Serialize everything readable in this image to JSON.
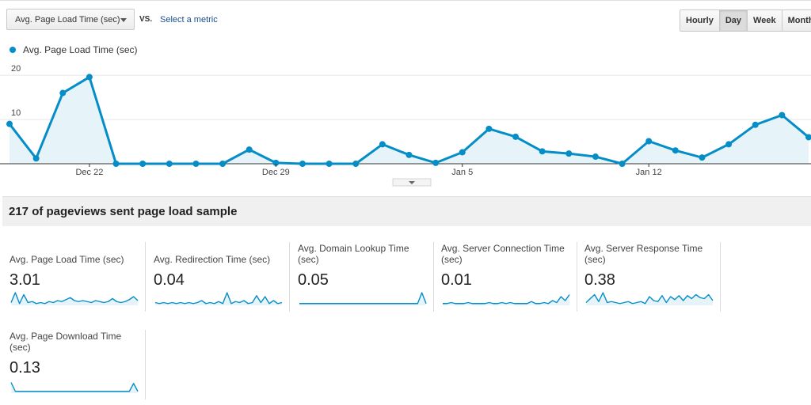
{
  "toolbar": {
    "metric_select_value": "Avg. Page Load Time (sec)",
    "vs_label": "VS.",
    "select_metric_link": "Select a metric",
    "periods": [
      "Hourly",
      "Day",
      "Week",
      "Month"
    ],
    "active_period": "Day"
  },
  "colors": {
    "accent": "#058dc7",
    "fill": "#e6f4fa"
  },
  "chart_data": {
    "type": "area",
    "series": [
      {
        "name": "Avg. Page Load Time (sec)",
        "values": [
          9.0,
          1.2,
          16.0,
          19.6,
          0.0,
          0.0,
          0.0,
          0.0,
          0.0,
          3.2,
          0.2,
          0.0,
          0.0,
          0.0,
          4.4,
          2.0,
          0.2,
          2.6,
          7.9,
          6.1,
          2.8,
          2.3,
          1.6,
          0.0,
          5.1,
          3.0,
          1.4,
          4.4,
          8.8,
          11.0,
          6.0
        ]
      }
    ],
    "ylim": [
      0,
      22
    ],
    "yticks": [
      {
        "value": 20,
        "label": "20"
      },
      {
        "value": 10,
        "label": "10"
      }
    ],
    "xticks": [
      {
        "index": 3,
        "label": "Dec 22"
      },
      {
        "index": 10,
        "label": "Dec 29"
      },
      {
        "index": 17,
        "label": "Jan 5"
      },
      {
        "index": 24,
        "label": "Jan 12"
      }
    ],
    "grid": true,
    "legend": "top-left"
  },
  "sample_title": "217 of pageviews sent page load sample",
  "metrics": [
    {
      "label": "Avg. Page Load Time (sec)",
      "value": "3.01",
      "spark": [
        2,
        12,
        1,
        10,
        2,
        3,
        1,
        2,
        1,
        3,
        2,
        4,
        3,
        5,
        7,
        4,
        3,
        4,
        3,
        2,
        4,
        3,
        2,
        3,
        6,
        3,
        2,
        3,
        5,
        8,
        4
      ]
    },
    {
      "label": "Avg. Redirection Time (sec)",
      "value": "0.04",
      "spark": [
        2,
        1,
        2,
        1,
        2,
        1,
        2,
        1,
        2,
        1,
        2,
        4,
        1,
        2,
        1,
        3,
        1,
        12,
        1,
        3,
        2,
        4,
        1,
        2,
        9,
        2,
        8,
        1,
        4,
        1,
        2
      ]
    },
    {
      "label": "Avg. Domain Lookup Time (sec)",
      "value": "0.05",
      "spark": [
        1,
        1,
        1,
        1,
        1,
        1,
        1,
        1,
        1,
        1,
        1,
        1,
        1,
        1,
        1,
        1,
        1,
        1,
        1,
        1,
        1,
        1,
        1,
        1,
        1,
        1,
        1,
        1,
        1,
        12,
        1
      ]
    },
    {
      "label": "Avg. Server Connection Time (sec)",
      "value": "0.01",
      "spark": [
        1,
        1,
        2,
        1,
        1,
        1,
        2,
        1,
        1,
        1,
        1,
        2,
        1,
        1,
        2,
        1,
        2,
        1,
        1,
        1,
        1,
        3,
        1,
        1,
        2,
        1,
        4,
        2,
        8,
        4,
        10
      ]
    },
    {
      "label": "Avg. Server Response Time (sec)",
      "value": "0.38",
      "spark": [
        2,
        6,
        10,
        3,
        12,
        2,
        3,
        2,
        1,
        2,
        3,
        1,
        2,
        3,
        1,
        8,
        4,
        3,
        9,
        2,
        8,
        5,
        9,
        4,
        9,
        6,
        10,
        7,
        6,
        10,
        4
      ]
    },
    {
      "label": "Avg. Page Download Time (sec)",
      "value": "0.13",
      "spark": [
        10,
        1,
        1,
        1,
        1,
        1,
        1,
        1,
        1,
        1,
        1,
        1,
        1,
        1,
        1,
        1,
        1,
        1,
        1,
        1,
        1,
        1,
        1,
        1,
        1,
        1,
        1,
        1,
        1,
        9,
        1
      ]
    }
  ]
}
